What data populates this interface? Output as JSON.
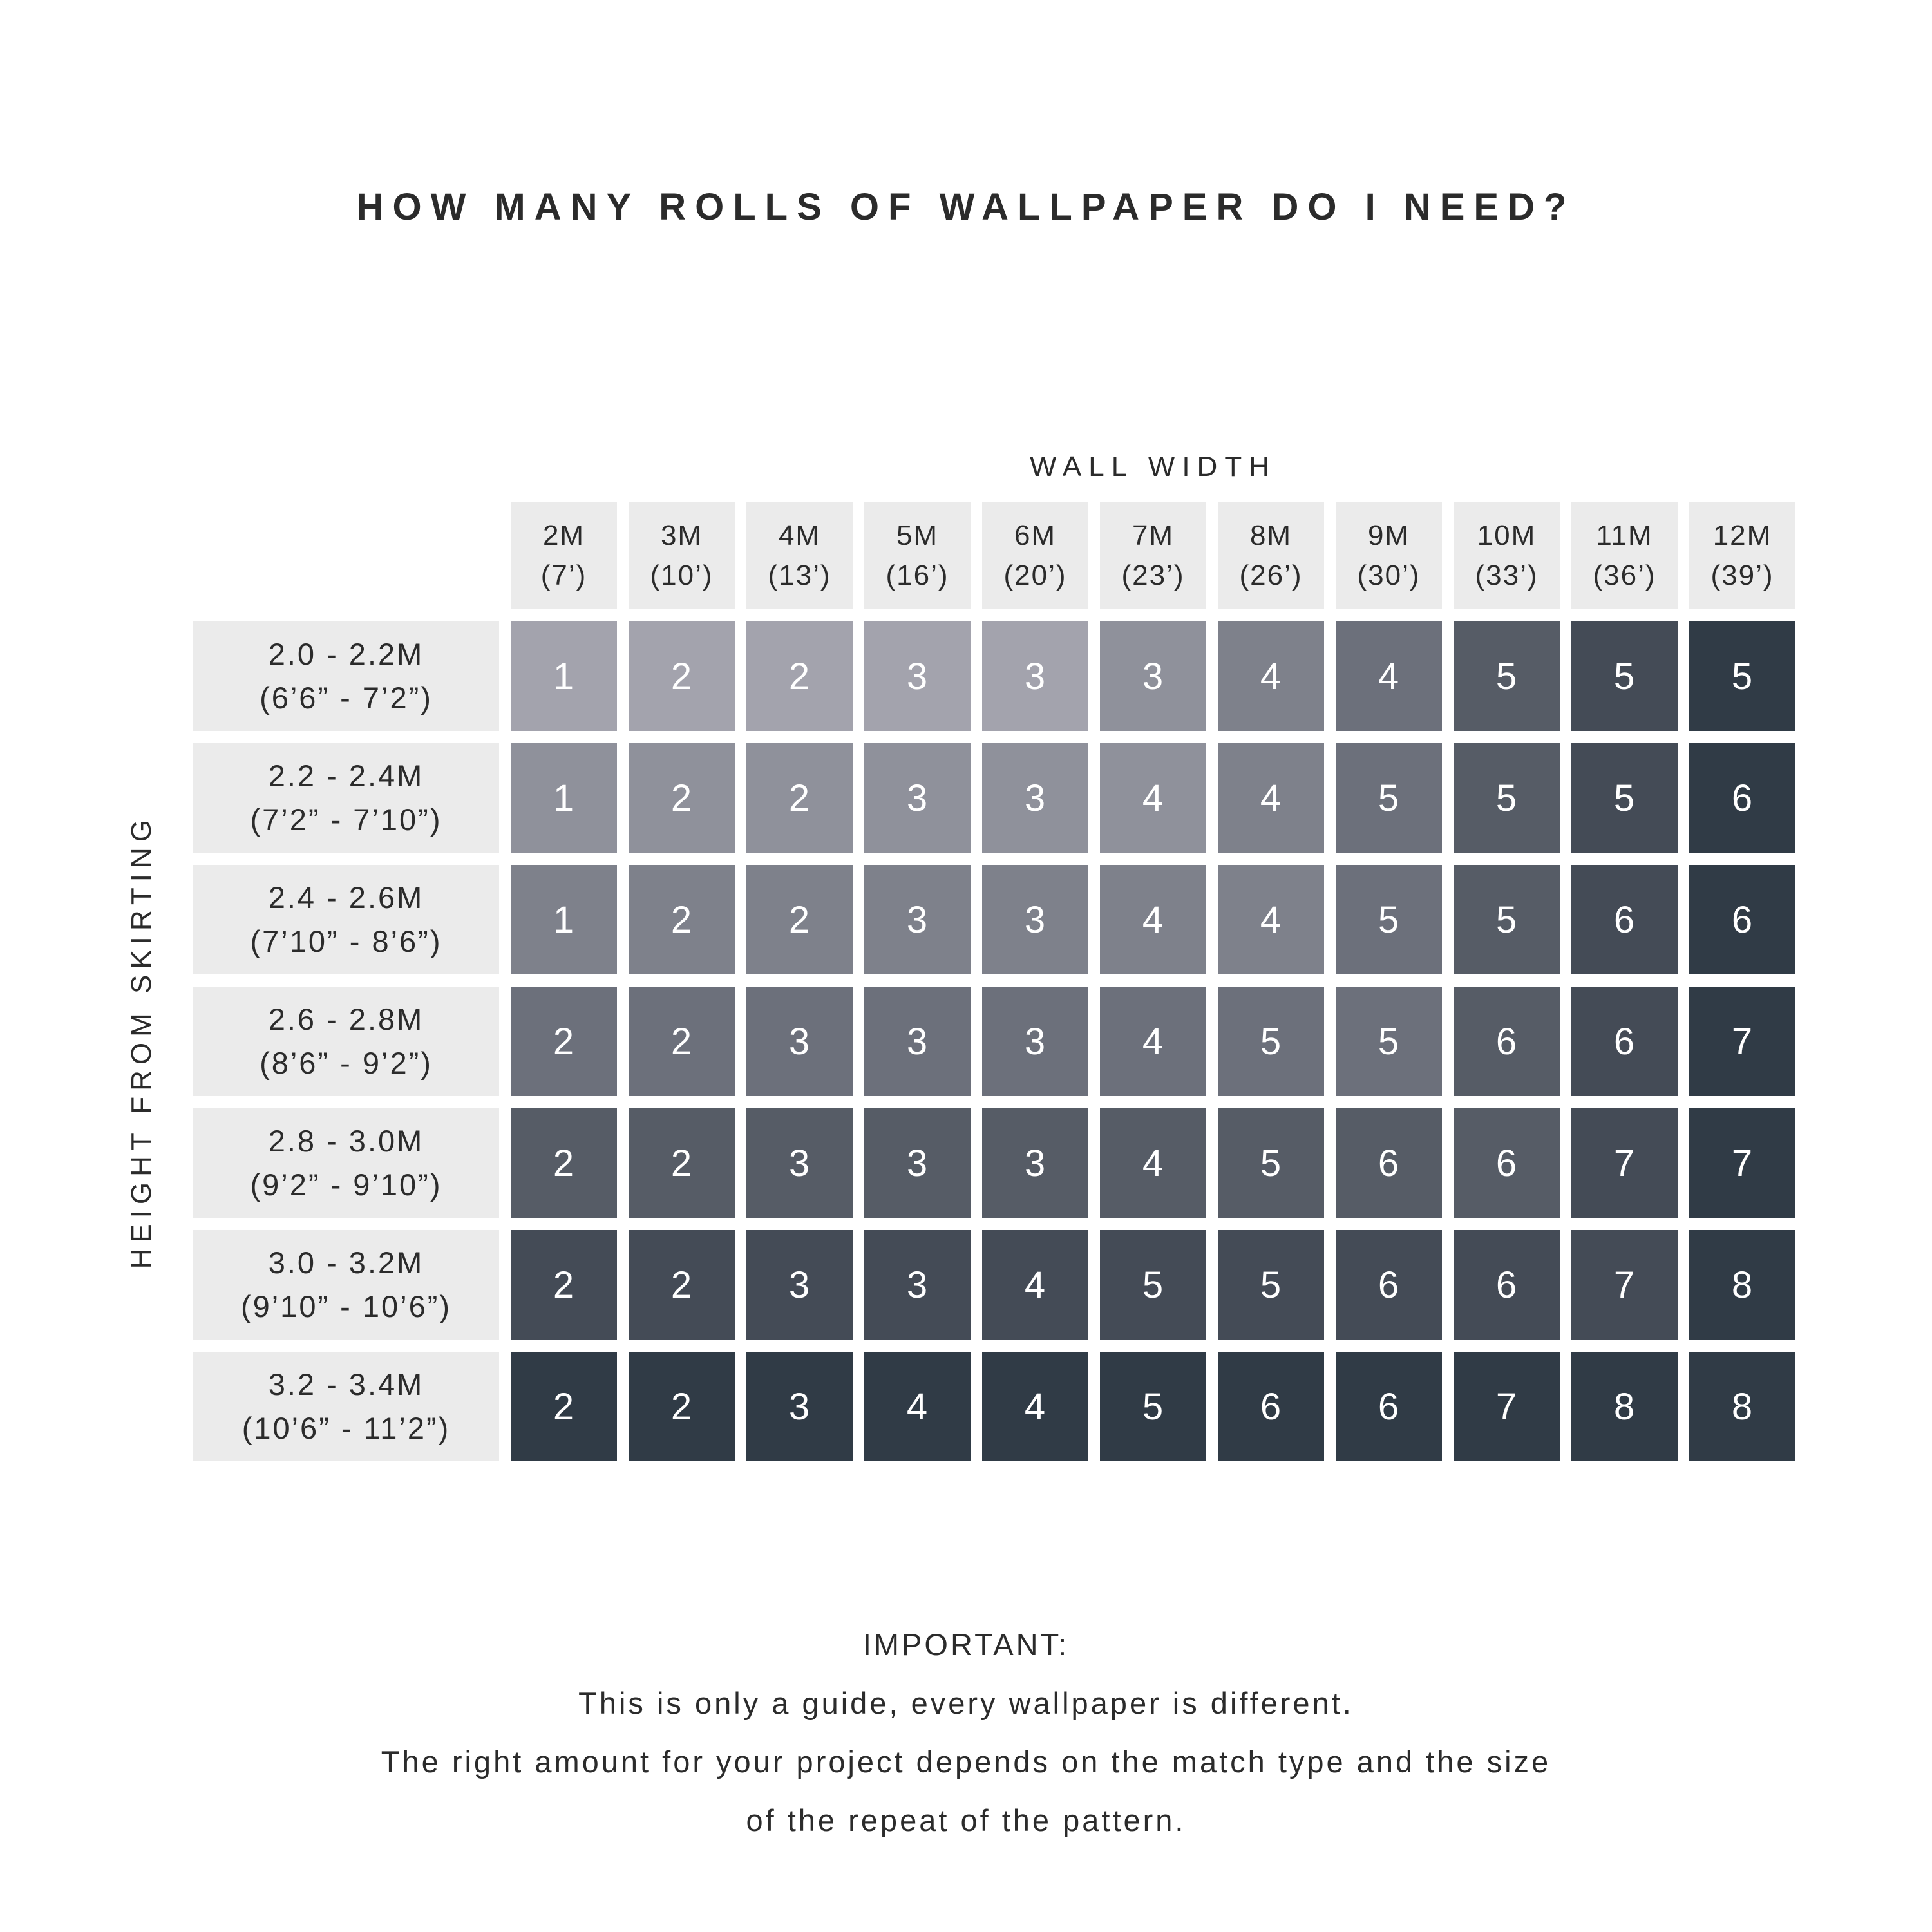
{
  "title": "HOW MANY ROLLS OF WALLPAPER DO I NEED?",
  "chart_data": {
    "type": "heatmap",
    "title": "HOW MANY ROLLS OF WALLPAPER DO I NEED?",
    "xlabel": "WALL WIDTH",
    "ylabel": "HEIGHT FROM SKIRTING",
    "value_unit": "rolls",
    "columns": [
      {
        "label": "2M",
        "sublabel": "(7’)"
      },
      {
        "label": "3M",
        "sublabel": "(10’)"
      },
      {
        "label": "4M",
        "sublabel": "(13’)"
      },
      {
        "label": "5M",
        "sublabel": "(16’)"
      },
      {
        "label": "6M",
        "sublabel": "(20’)"
      },
      {
        "label": "7M",
        "sublabel": "(23’)"
      },
      {
        "label": "8M",
        "sublabel": "(26’)"
      },
      {
        "label": "9M",
        "sublabel": "(30’)"
      },
      {
        "label": "10M",
        "sublabel": "(33’)"
      },
      {
        "label": "11M",
        "sublabel": "(36’)"
      },
      {
        "label": "12M",
        "sublabel": "(39’)"
      }
    ],
    "rows": [
      {
        "label": "2.0 - 2.2M",
        "sublabel": "(6’6” - 7’2”)",
        "values": [
          1,
          2,
          2,
          3,
          3,
          3,
          4,
          4,
          5,
          5,
          5
        ]
      },
      {
        "label": "2.2 - 2.4M",
        "sublabel": "(7’2” - 7’10”)",
        "values": [
          1,
          2,
          2,
          3,
          3,
          4,
          4,
          5,
          5,
          5,
          6
        ]
      },
      {
        "label": "2.4 - 2.6M",
        "sublabel": "(7’10” - 8’6”)",
        "values": [
          1,
          2,
          2,
          3,
          3,
          4,
          4,
          5,
          5,
          6,
          6
        ]
      },
      {
        "label": "2.6 - 2.8M",
        "sublabel": "(8’6” - 9’2”)",
        "values": [
          2,
          2,
          3,
          3,
          3,
          4,
          5,
          5,
          6,
          6,
          7
        ]
      },
      {
        "label": "2.8 - 3.0M",
        "sublabel": "(9’2” - 9’10”)",
        "values": [
          2,
          2,
          3,
          3,
          3,
          4,
          5,
          6,
          6,
          7,
          7
        ]
      },
      {
        "label": "3.0 - 3.2M",
        "sublabel": "(9’10” - 10’6”)",
        "values": [
          2,
          2,
          3,
          3,
          4,
          5,
          5,
          6,
          6,
          7,
          8
        ]
      },
      {
        "label": "3.2 - 3.4M",
        "sublabel": "(10’6” - 11’2”)",
        "values": [
          2,
          2,
          3,
          4,
          4,
          5,
          6,
          6,
          7,
          8,
          8
        ]
      }
    ],
    "cell_shade_palette": [
      "#a3a3ad",
      "#8f919b",
      "#7e818b",
      "#6c707b",
      "#565c66",
      "#444b56",
      "#303b46"
    ],
    "shade_rule": "paletteIndex = min(6, max(rowIndex, colIndex - 4)) ; diagonal gradient light top-left to dark bottom-right",
    "legend_position": "none",
    "grid": false
  },
  "note": {
    "lines": [
      "IMPORTANT:",
      "This is only a guide, every wallpaper is different.",
      "The right amount for your project depends on the match type and the size",
      "of the repeat of the pattern."
    ]
  },
  "colors": {
    "background": "#ffffff",
    "header_bg": "#ebebeb",
    "text": "#2b2b2b",
    "cell_text": "#ffffff"
  }
}
